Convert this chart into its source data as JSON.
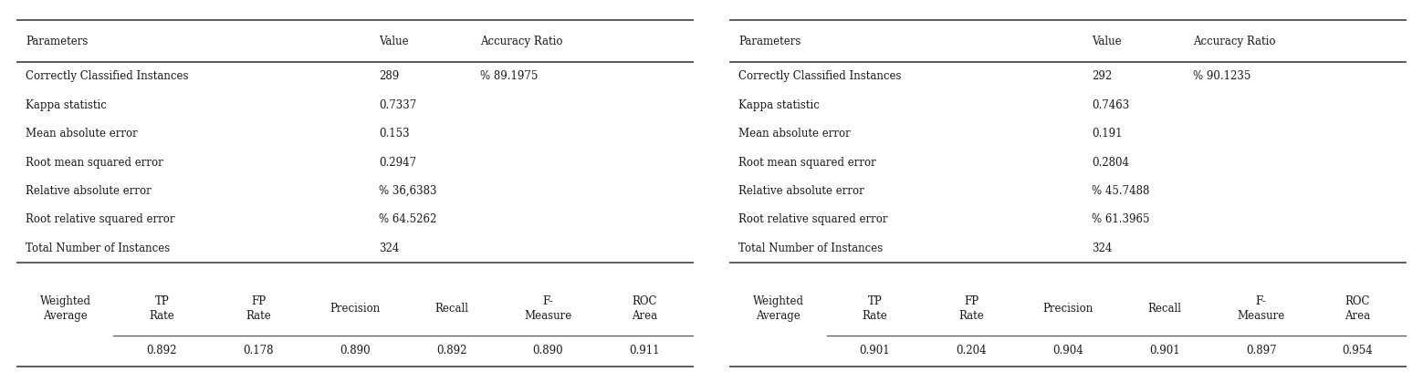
{
  "figsize": [
    15.59,
    4.08
  ],
  "dpi": 100,
  "bg_color": "#ffffff",
  "left_table": {
    "data_rows": [
      [
        "Correctly Classified Instances",
        "289",
        "% 89.1975"
      ],
      [
        "Kappa statistic",
        "0.7337",
        ""
      ],
      [
        "Mean absolute error",
        "0.153",
        ""
      ],
      [
        "Root mean squared error",
        "0.2947",
        ""
      ],
      [
        "Relative absolute error",
        "% 36,6383",
        ""
      ],
      [
        "Root relative squared error",
        "% 64.5262",
        ""
      ],
      [
        "Total Number of Instances",
        "324",
        ""
      ]
    ],
    "bottom_header": [
      "Weighted\nAverage",
      "TP\nRate",
      "FP\nRate",
      "Precision",
      "Recall",
      "F-\nMeasure",
      "ROC\nArea"
    ],
    "bottom_data": [
      "",
      "0.892",
      "0.178",
      "0.890",
      "0.892",
      "0.890",
      "0.911"
    ]
  },
  "right_table": {
    "data_rows": [
      [
        "Correctly Classified Instances",
        "292",
        "% 90.1235"
      ],
      [
        "Kappa statistic",
        "0.7463",
        ""
      ],
      [
        "Mean absolute error",
        "0.191",
        ""
      ],
      [
        "Root mean squared error",
        "0.2804",
        ""
      ],
      [
        "Relative absolute error",
        "% 45.7488",
        ""
      ],
      [
        "Root relative squared error",
        "% 61.3965",
        ""
      ],
      [
        "Total Number of Instances",
        "324",
        ""
      ]
    ],
    "bottom_header": [
      "Weighted\nAverage",
      "TP\nRate",
      "FP\nRate",
      "Precision",
      "Recall",
      "F-\nMeasure",
      "ROC\nArea"
    ],
    "bottom_data": [
      "",
      "0.901",
      "0.204",
      "0.904",
      "0.901",
      "0.897",
      "0.954"
    ]
  },
  "font_size": 8.5,
  "text_color": "#1a1a1a",
  "line_color": "#555555",
  "line_width": 0.9
}
